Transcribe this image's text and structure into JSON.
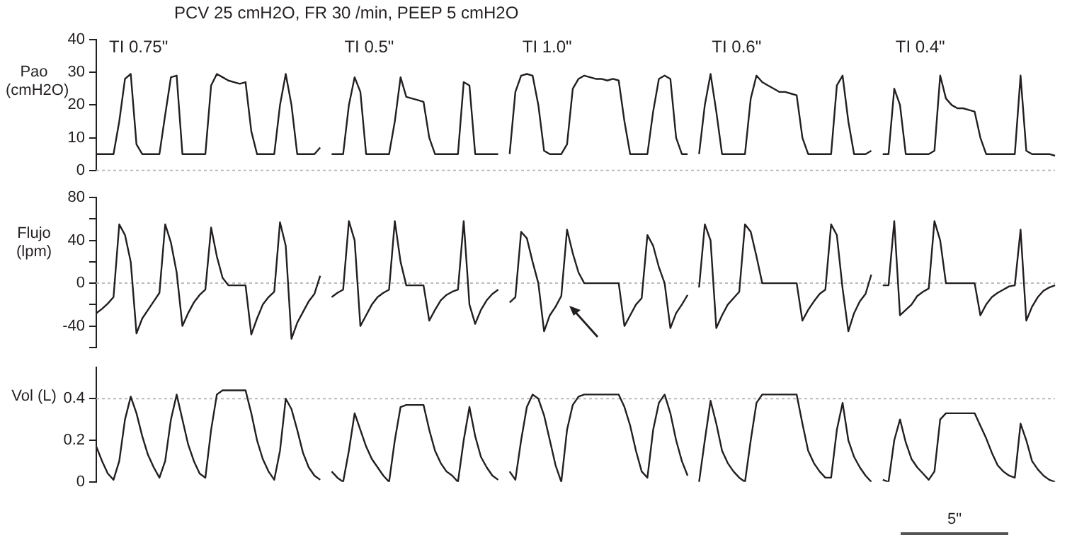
{
  "chart_data": [
    {
      "type": "line",
      "title": "PCV 25 cmH2O, FR 30 /min, PEEP 5 cmH2O",
      "ylabel": "Pao (cmH2O)",
      "categories": [
        null,
        null,
        null,
        null,
        null,
        null,
        null,
        null,
        null,
        null,
        null,
        null,
        null,
        null,
        null,
        null,
        null,
        null,
        null,
        null,
        null,
        null,
        null,
        null,
        null,
        null,
        null,
        null,
        null,
        null,
        null,
        null,
        null,
        null,
        null,
        null,
        null,
        null,
        null,
        null,
        null,
        null,
        null,
        null,
        null,
        null,
        null,
        null,
        null,
        null,
        null,
        null,
        null,
        null,
        null,
        null,
        null,
        null,
        null,
        null,
        null,
        null,
        null,
        null,
        null,
        null,
        null,
        null,
        null,
        null,
        null,
        null,
        null,
        null,
        null,
        null,
        null,
        null,
        null,
        null,
        null,
        null,
        null,
        null,
        null,
        null,
        null,
        null,
        null,
        null,
        null,
        null,
        null,
        null,
        null,
        null,
        null,
        null,
        null,
        null,
        null,
        null,
        null,
        null,
        null,
        null,
        null,
        null,
        null,
        null,
        null,
        null,
        null,
        null,
        null,
        null,
        null,
        null,
        null,
        null,
        null,
        null,
        null,
        null,
        null,
        null,
        null,
        null,
        null,
        null,
        null,
        null,
        null,
        null,
        null,
        null,
        null,
        null,
        null,
        null,
        null,
        null,
        null,
        null,
        null,
        null,
        null,
        null,
        null,
        null,
        null,
        null,
        null,
        null,
        null,
        null,
        null,
        null,
        null,
        null,
        null,
        null,
        null,
        null,
        null,
        null,
        null,
        null
      ],
      "series": [
        {
          "color": "#231f20",
          "values": [
            5,
            5,
            5,
            5,
            15,
            28,
            29.5,
            8,
            5,
            5,
            5,
            5,
            17,
            28.5,
            29,
            5,
            5,
            5,
            5,
            5,
            26,
            29.5,
            28.5,
            27.5,
            27,
            26.5,
            27,
            12,
            5,
            5,
            5,
            5,
            20,
            29.5,
            20,
            5,
            5,
            5,
            5,
            7,
            null,
            5,
            5,
            5,
            20,
            28.5,
            24,
            5,
            5,
            5,
            5,
            5,
            15,
            28.5,
            22.5,
            22,
            21.5,
            21,
            10,
            5,
            5,
            5,
            5,
            5,
            27,
            26,
            5,
            5,
            5,
            5,
            5,
            null,
            5,
            24,
            29,
            29.5,
            29,
            20,
            6,
            5,
            5,
            5,
            8,
            25,
            28,
            29,
            28.5,
            28,
            28,
            27.5,
            28,
            27.5,
            15,
            5,
            5,
            5,
            5,
            18,
            28,
            29,
            28,
            10,
            5,
            5,
            null,
            5,
            20,
            29.5,
            18,
            5,
            5,
            5,
            5,
            5,
            22,
            29,
            27,
            26,
            25,
            24,
            24,
            23.5,
            23,
            10,
            5,
            5,
            5,
            5,
            5,
            26,
            29,
            15,
            5,
            5,
            5,
            6,
            null,
            5,
            5,
            25,
            20,
            5,
            5,
            5,
            5,
            5,
            6,
            29,
            22,
            20,
            19,
            19,
            18.5,
            18,
            10,
            5,
            5,
            5,
            5,
            5,
            5,
            29,
            6,
            5,
            5,
            5,
            5,
            4.5
          ]
        }
      ],
      "ylim": [
        0,
        40
      ],
      "yticks": [
        0,
        10,
        20,
        30,
        40
      ],
      "tick_labels": "y",
      "ref_lines": [
        {
          "axis": "y",
          "value": 0,
          "color": "#bbbbbb",
          "line_style": "dotted"
        }
      ],
      "annotations": [
        "TI 0.75\"",
        "TI 0.5\"",
        "TI 1.0\"",
        "TI 0.6\"",
        "TI 0.4\""
      ]
    },
    {
      "type": "line",
      "ylabel": "Flujo (lpm)",
      "categories": [
        null,
        null,
        null,
        null,
        null,
        null,
        null,
        null,
        null,
        null,
        null,
        null,
        null,
        null,
        null,
        null,
        null,
        null,
        null,
        null,
        null,
        null,
        null,
        null,
        null,
        null,
        null,
        null,
        null,
        null,
        null,
        null,
        null,
        null,
        null,
        null,
        null,
        null,
        null,
        null,
        null,
        null,
        null,
        null,
        null,
        null,
        null,
        null,
        null,
        null,
        null,
        null,
        null,
        null,
        null,
        null,
        null,
        null,
        null,
        null,
        null,
        null,
        null,
        null,
        null,
        null,
        null,
        null,
        null,
        null,
        null,
        null,
        null,
        null,
        null,
        null,
        null,
        null,
        null,
        null,
        null,
        null,
        null,
        null,
        null,
        null,
        null,
        null,
        null,
        null,
        null,
        null,
        null,
        null,
        null,
        null,
        null,
        null,
        null,
        null,
        null,
        null,
        null,
        null,
        null,
        null,
        null,
        null,
        null,
        null,
        null,
        null,
        null,
        null,
        null,
        null,
        null,
        null,
        null,
        null,
        null,
        null,
        null,
        null,
        null,
        null,
        null,
        null,
        null,
        null,
        null,
        null,
        null,
        null,
        null,
        null,
        null,
        null,
        null,
        null,
        null,
        null,
        null,
        null,
        null,
        null,
        null,
        null,
        null,
        null,
        null,
        null,
        null,
        null,
        null,
        null,
        null,
        null,
        null,
        null,
        null,
        null,
        null,
        null,
        null,
        null,
        null,
        null
      ],
      "series": [
        {
          "color": "#231f20",
          "values": [
            -28,
            -24,
            -19,
            -13,
            55,
            45,
            20,
            -47,
            -33,
            -25,
            -17,
            -9,
            55,
            38,
            10,
            -40,
            -28,
            -18,
            -11,
            -6,
            52,
            25,
            5,
            -2,
            -2,
            -2,
            -2,
            -48,
            -33,
            -20,
            -13,
            -8,
            57,
            35,
            -52,
            -37,
            -27,
            -17,
            -10,
            7,
            null,
            -13,
            -9,
            -6,
            58,
            40,
            -40,
            -30,
            -20,
            -13,
            -9,
            -6,
            58,
            20,
            -2,
            -2,
            -2,
            -2,
            -35,
            -25,
            -16,
            -11,
            -8,
            -6,
            58,
            -20,
            -38,
            -25,
            -16,
            -10,
            -6,
            null,
            -18,
            -13,
            48,
            42,
            20,
            0,
            -45,
            -30,
            -22,
            -12,
            50,
            28,
            10,
            0,
            0,
            0,
            0,
            0,
            0,
            0,
            -40,
            -30,
            -20,
            -14,
            45,
            35,
            15,
            0,
            -42,
            -28,
            -20,
            -11,
            null,
            -4,
            55,
            40,
            -42,
            -30,
            -20,
            -14,
            -8,
            55,
            48,
            25,
            0,
            0,
            0,
            0,
            0,
            0,
            0,
            -35,
            -25,
            -17,
            -10,
            -6,
            55,
            45,
            -5,
            -45,
            -28,
            -17,
            -10,
            8,
            null,
            -2,
            -2,
            58,
            -30,
            -25,
            -20,
            -12,
            -8,
            -5,
            58,
            40,
            0,
            0,
            0,
            0,
            0,
            0,
            -30,
            -20,
            -13,
            -9,
            -6,
            -3,
            -2,
            50,
            -35,
            -22,
            -13,
            -7,
            -4,
            -2
          ]
        }
      ],
      "ylim": [
        -60,
        80
      ],
      "yticks": [
        {
          "value": -60,
          "label": null
        },
        -40,
        {
          "value": -20,
          "label": null
        },
        0,
        {
          "value": 20,
          "label": null
        },
        40,
        {
          "value": 60,
          "label": null
        },
        80
      ],
      "tick_labels": "y",
      "ref_lines": [
        {
          "axis": "y",
          "value": 0,
          "color": "#bbbbbb",
          "line_style": "dotted"
        }
      ]
    },
    {
      "type": "line",
      "ylabel": "Vol (L)",
      "categories": [
        null,
        null,
        null,
        null,
        null,
        null,
        null,
        null,
        null,
        null,
        null,
        null,
        null,
        null,
        null,
        null,
        null,
        null,
        null,
        null,
        null,
        null,
        null,
        null,
        null,
        null,
        null,
        null,
        null,
        null,
        null,
        null,
        null,
        null,
        null,
        null,
        null,
        null,
        null,
        null,
        null,
        null,
        null,
        null,
        null,
        null,
        null,
        null,
        null,
        null,
        null,
        null,
        null,
        null,
        null,
        null,
        null,
        null,
        null,
        null,
        null,
        null,
        null,
        null,
        null,
        null,
        null,
        null,
        null,
        null,
        null,
        null,
        null,
        null,
        null,
        null,
        null,
        null,
        null,
        null,
        null,
        null,
        null,
        null,
        null,
        null,
        null,
        null,
        null,
        null,
        null,
        null,
        null,
        null,
        null,
        null,
        null,
        null,
        null,
        null,
        null,
        null,
        null,
        null,
        null,
        null,
        null,
        null,
        null,
        null,
        null,
        null,
        null,
        null,
        null,
        null,
        null,
        null,
        null,
        null,
        null,
        null,
        null,
        null,
        null,
        null,
        null,
        null,
        null,
        null,
        null,
        null,
        null,
        null,
        null,
        null,
        null,
        null,
        null,
        null,
        null,
        null,
        null,
        null,
        null,
        null,
        null,
        null,
        null,
        null,
        null,
        null,
        null,
        null,
        null,
        null,
        null,
        null,
        null,
        null,
        null,
        null,
        null,
        null,
        null,
        null,
        null,
        null
      ],
      "series": [
        {
          "color": "#231f20",
          "values": [
            0.17,
            0.1,
            0.04,
            0.01,
            0.1,
            0.3,
            0.41,
            0.33,
            0.22,
            0.13,
            0.07,
            0.02,
            0.1,
            0.3,
            0.42,
            0.3,
            0.18,
            0.1,
            0.04,
            0.02,
            0.25,
            0.42,
            0.44,
            0.44,
            0.44,
            0.44,
            0.44,
            0.33,
            0.2,
            0.11,
            0.05,
            0.01,
            0.15,
            0.4,
            0.35,
            0.25,
            0.14,
            0.07,
            0.03,
            0.01,
            null,
            0.05,
            0.02,
            0,
            0.15,
            0.33,
            0.25,
            0.17,
            0.11,
            0.07,
            0.03,
            0,
            0.2,
            0.36,
            0.37,
            0.37,
            0.37,
            0.37,
            0.25,
            0.15,
            0.09,
            0.05,
            0.03,
            0,
            0.2,
            0.36,
            0.22,
            0.12,
            0.07,
            0.03,
            0.01,
            null,
            0.05,
            0.01,
            0.2,
            0.36,
            0.42,
            0.4,
            0.32,
            0.2,
            0.08,
            0,
            0.25,
            0.37,
            0.41,
            0.42,
            0.42,
            0.42,
            0.42,
            0.42,
            0.42,
            0.42,
            0.36,
            0.27,
            0.15,
            0.05,
            0.02,
            0.25,
            0.38,
            0.42,
            0.33,
            0.2,
            0.1,
            0.03,
            null,
            0,
            0.2,
            0.39,
            0.28,
            0.15,
            0.09,
            0.05,
            0.02,
            0,
            0.2,
            0.38,
            0.42,
            0.42,
            0.42,
            0.42,
            0.42,
            0.42,
            0.42,
            0.28,
            0.15,
            0.09,
            0.05,
            0.02,
            0.02,
            0.25,
            0.38,
            0.2,
            0.12,
            0.07,
            0.03,
            0,
            null,
            0.01,
            0,
            0.2,
            0.3,
            0.19,
            0.11,
            0.07,
            0.04,
            0.01,
            0.05,
            0.3,
            0.33,
            0.33,
            0.33,
            0.33,
            0.33,
            0.33,
            0.27,
            0.21,
            0.14,
            0.08,
            0.05,
            0.03,
            0.02,
            0.28,
            0.2,
            0.1,
            0.06,
            0.03,
            0.01,
            0
          ]
        }
      ],
      "ylim": [
        0,
        0.55
      ],
      "yticks": [
        0,
        0.2,
        0.4
      ],
      "tick_labels": "y",
      "ref_lines": [
        {
          "axis": "y",
          "value": 0.4,
          "color": "#bbbbbb",
          "line_style": "dotted"
        }
      ],
      "annotations": [
        "5\""
      ]
    }
  ]
}
